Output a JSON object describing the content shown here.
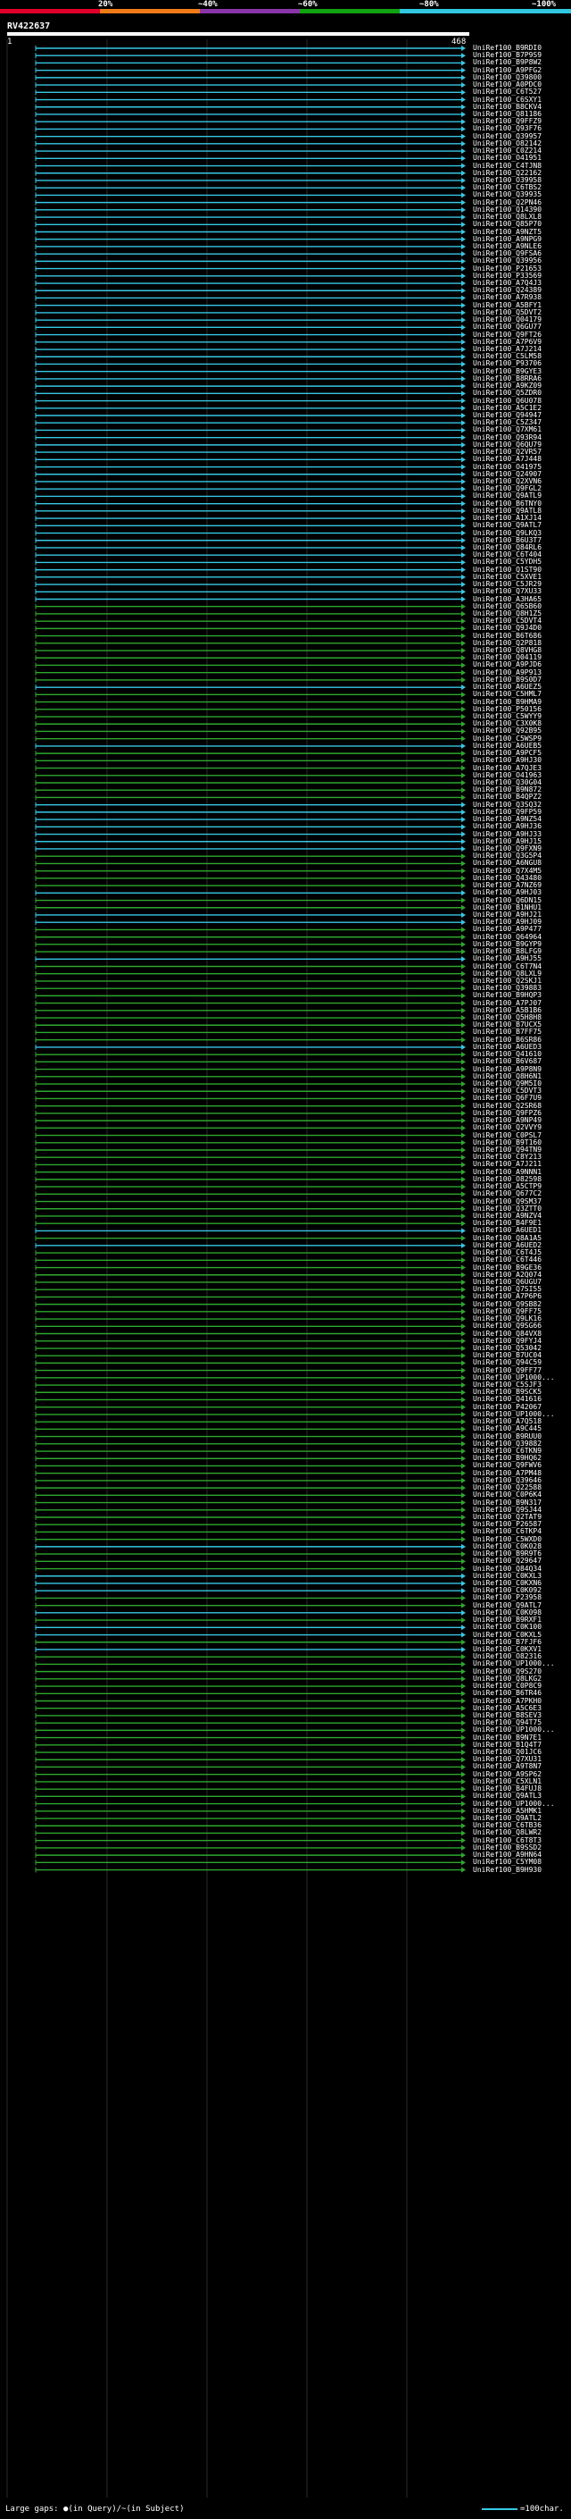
{
  "scale": {
    "labels": [
      "20%",
      "~40%",
      "~60%",
      "~80%",
      "~100%"
    ],
    "colors": [
      "#e0002a",
      "#f07b18",
      "#8a35a8",
      "#12a312",
      "#30c8e0"
    ]
  },
  "query": {
    "name": "RV422637",
    "start": "1",
    "end": "468"
  },
  "colors": {
    "cyan": "#37c8e5",
    "green": "#2ea82e",
    "query": "#ffffff",
    "grid": "#2a2a2a"
  },
  "hits": [
    {
      "label": "UniRef100_B9RDI0",
      "c": "cyan"
    },
    {
      "label": "UniRef100_B7P9S9",
      "c": "cyan"
    },
    {
      "label": "UniRef100_B9P8W2",
      "c": "cyan"
    },
    {
      "label": "UniRef100_A9PFG2",
      "c": "cyan"
    },
    {
      "label": "UniRef100_Q39800",
      "c": "cyan"
    },
    {
      "label": "UniRef100_A0PDC0",
      "c": "cyan"
    },
    {
      "label": "UniRef100_C6T527",
      "c": "cyan"
    },
    {
      "label": "UniRef100_C6SXY1",
      "c": "cyan"
    },
    {
      "label": "UniRef100_B8CKV4",
      "c": "cyan"
    },
    {
      "label": "UniRef100_Q81186",
      "c": "cyan"
    },
    {
      "label": "UniRef100_Q9FFZ9",
      "c": "cyan"
    },
    {
      "label": "UniRef100_Q93F76",
      "c": "cyan"
    },
    {
      "label": "UniRef100_Q39957",
      "c": "cyan"
    },
    {
      "label": "UniRef100_O82142",
      "c": "cyan"
    },
    {
      "label": "UniRef100_C0Z214",
      "c": "cyan"
    },
    {
      "label": "UniRef100_O41951",
      "c": "cyan"
    },
    {
      "label": "UniRef100_C4TJN8",
      "c": "cyan"
    },
    {
      "label": "UniRef100_Q22162",
      "c": "cyan"
    },
    {
      "label": "UniRef100_O39958",
      "c": "cyan"
    },
    {
      "label": "UniRef100_C6TBS2",
      "c": "cyan"
    },
    {
      "label": "UniRef100_Q39935",
      "c": "cyan"
    },
    {
      "label": "UniRef100_Q2PN46",
      "c": "cyan"
    },
    {
      "label": "UniRef100_Q14390",
      "c": "cyan"
    },
    {
      "label": "UniRef100_Q8LXL8",
      "c": "cyan"
    },
    {
      "label": "UniRef100_Q85P70",
      "c": "cyan"
    },
    {
      "label": "UniRef100_A9NZT5",
      "c": "cyan"
    },
    {
      "label": "UniRef100_A9NPG9",
      "c": "cyan"
    },
    {
      "label": "UniRef100_A9NLE6",
      "c": "cyan"
    },
    {
      "label": "UniRef100_Q9FSA6",
      "c": "cyan"
    },
    {
      "label": "UniRef100_Q39956",
      "c": "cyan"
    },
    {
      "label": "UniRef100_P21653",
      "c": "cyan"
    },
    {
      "label": "UniRef100_P33569",
      "c": "cyan"
    },
    {
      "label": "UniRef100_A7Q4J3",
      "c": "cyan"
    },
    {
      "label": "UniRef100_Q24389",
      "c": "cyan"
    },
    {
      "label": "UniRef100_A7R938",
      "c": "cyan"
    },
    {
      "label": "UniRef100_A5BFY1",
      "c": "cyan"
    },
    {
      "label": "UniRef100_Q5DVT2",
      "c": "cyan"
    },
    {
      "label": "UniRef100_Q04179",
      "c": "cyan"
    },
    {
      "label": "UniRef100_Q6GU77",
      "c": "cyan"
    },
    {
      "label": "UniRef100_Q9FT26",
      "c": "cyan"
    },
    {
      "label": "UniRef100_A7P6V9",
      "c": "cyan"
    },
    {
      "label": "UniRef100_A7J214",
      "c": "cyan"
    },
    {
      "label": "UniRef100_C5LM58",
      "c": "cyan"
    },
    {
      "label": "UniRef100_P93706",
      "c": "cyan"
    },
    {
      "label": "UniRef100_B9GYE3",
      "c": "cyan"
    },
    {
      "label": "UniRef100_B8RRA6",
      "c": "cyan"
    },
    {
      "label": "UniRef100_A9KZ09",
      "c": "cyan"
    },
    {
      "label": "UniRef100_Q5ZDR0",
      "c": "cyan"
    },
    {
      "label": "UniRef100_Q6U078",
      "c": "cyan"
    },
    {
      "label": "UniRef100_A5C1E2",
      "c": "cyan"
    },
    {
      "label": "UniRef100_Q94947",
      "c": "cyan"
    },
    {
      "label": "UniRef100_C5Z347",
      "c": "cyan"
    },
    {
      "label": "UniRef100_Q7XM61",
      "c": "cyan"
    },
    {
      "label": "UniRef100_Q93R94",
      "c": "cyan"
    },
    {
      "label": "UniRef100_Q6QU79",
      "c": "cyan"
    },
    {
      "label": "UniRef100_Q2VR57",
      "c": "cyan"
    },
    {
      "label": "UniRef100_A7J448",
      "c": "cyan"
    },
    {
      "label": "UniRef100_O41975",
      "c": "cyan"
    },
    {
      "label": "UniRef100_Q24907",
      "c": "cyan"
    },
    {
      "label": "UniRef100_Q2XVN6",
      "c": "cyan"
    },
    {
      "label": "UniRef100_Q9FGL2",
      "c": "cyan"
    },
    {
      "label": "UniRef100_Q9ATL9",
      "c": "cyan"
    },
    {
      "label": "UniRef100_B6TNY0",
      "c": "cyan"
    },
    {
      "label": "UniRef100_Q9ATL8",
      "c": "cyan"
    },
    {
      "label": "UniRef100_A1XJ14",
      "c": "cyan"
    },
    {
      "label": "UniRef100_Q9ATL7",
      "c": "cyan"
    },
    {
      "label": "UniRef100_Q9LKQ3",
      "c": "cyan"
    },
    {
      "label": "UniRef100_B6U3T7",
      "c": "cyan"
    },
    {
      "label": "UniRef100_Q84RL6",
      "c": "cyan"
    },
    {
      "label": "UniRef100_C6T404",
      "c": "cyan"
    },
    {
      "label": "UniRef100_C5YDH5",
      "c": "cyan"
    },
    {
      "label": "UniRef100_Q1ST90",
      "c": "cyan"
    },
    {
      "label": "UniRef100_C5XVE1",
      "c": "cyan"
    },
    {
      "label": "UniRef100_C5JR29",
      "c": "cyan"
    },
    {
      "label": "UniRef100_Q7XU33",
      "c": "cyan"
    },
    {
      "label": "UniRef100_A3HA65",
      "c": "cyan"
    },
    {
      "label": "UniRef100_Q65B60",
      "c": "green"
    },
    {
      "label": "UniRef100_Q8H1Z5",
      "c": "green"
    },
    {
      "label": "UniRef100_C5DVT4",
      "c": "green"
    },
    {
      "label": "UniRef100_Q9J4D0",
      "c": "green"
    },
    {
      "label": "UniRef100_B6T686",
      "c": "green"
    },
    {
      "label": "UniRef100_Q2P818",
      "c": "green"
    },
    {
      "label": "UniRef100_Q8VHG8",
      "c": "green"
    },
    {
      "label": "UniRef100_Q04119",
      "c": "green"
    },
    {
      "label": "UniRef100_A9PJD6",
      "c": "green"
    },
    {
      "label": "UniRef100_A9P913",
      "c": "green"
    },
    {
      "label": "UniRef100_B9S0D7",
      "c": "green"
    },
    {
      "label": "UniRef100_A6UEZ5",
      "c": "cyan"
    },
    {
      "label": "UniRef100_C5HML7",
      "c": "green"
    },
    {
      "label": "UniRef100_B9HMA9",
      "c": "green"
    },
    {
      "label": "UniRef100_P50156",
      "c": "green"
    },
    {
      "label": "UniRef100_C5WYY9",
      "c": "green"
    },
    {
      "label": "UniRef100_C3X0K8",
      "c": "green"
    },
    {
      "label": "UniRef100_Q92B95",
      "c": "green"
    },
    {
      "label": "UniRef100_C5WSP9",
      "c": "green"
    },
    {
      "label": "UniRef100_A6UEB5",
      "c": "cyan"
    },
    {
      "label": "UniRef100_A9PCF5",
      "c": "green"
    },
    {
      "label": "UniRef100_A9HJ30",
      "c": "green"
    },
    {
      "label": "UniRef100_A7QJE3",
      "c": "green"
    },
    {
      "label": "UniRef100_O41963",
      "c": "green"
    },
    {
      "label": "UniRef100_Q30G04",
      "c": "green"
    },
    {
      "label": "UniRef100_B9N872",
      "c": "green"
    },
    {
      "label": "UniRef100_B4QPZ2",
      "c": "green"
    },
    {
      "label": "UniRef100_Q3SQ32",
      "c": "cyan"
    },
    {
      "label": "UniRef100_Q9FP59",
      "c": "cyan"
    },
    {
      "label": "UniRef100_A9NZ54",
      "c": "cyan"
    },
    {
      "label": "UniRef100_A9HJ36",
      "c": "cyan"
    },
    {
      "label": "UniRef100_A9HJ33",
      "c": "cyan"
    },
    {
      "label": "UniRef100_A9HJ15",
      "c": "cyan"
    },
    {
      "label": "UniRef100_Q9FXN9",
      "c": "cyan"
    },
    {
      "label": "UniRef100_Q3G5P4",
      "c": "green"
    },
    {
      "label": "UniRef100_A6NGU8",
      "c": "green"
    },
    {
      "label": "UniRef100_Q7X4M5",
      "c": "green"
    },
    {
      "label": "UniRef100_Q43480",
      "c": "green"
    },
    {
      "label": "UniRef100_A7NZ69",
      "c": "green"
    },
    {
      "label": "UniRef100_A9HJ03",
      "c": "cyan"
    },
    {
      "label": "UniRef100_Q6DN15",
      "c": "green"
    },
    {
      "label": "UniRef100_B1NHU1",
      "c": "green"
    },
    {
      "label": "UniRef100_A9HJ21",
      "c": "cyan"
    },
    {
      "label": "UniRef100_A9HJ09",
      "c": "cyan"
    },
    {
      "label": "UniRef100_A9P477",
      "c": "green"
    },
    {
      "label": "UniRef100_Q64964",
      "c": "green"
    },
    {
      "label": "UniRef100_B9GYP9",
      "c": "green"
    },
    {
      "label": "UniRef100_B8LFG9",
      "c": "green"
    },
    {
      "label": "UniRef100_A9HJ55",
      "c": "cyan"
    },
    {
      "label": "UniRef100_C6T7N4",
      "c": "green"
    },
    {
      "label": "UniRef100_Q8LXL9",
      "c": "green"
    },
    {
      "label": "UniRef100_Q2SKJ1",
      "c": "green"
    },
    {
      "label": "UniRef100_Q39883",
      "c": "green"
    },
    {
      "label": "UniRef100_B9HQP3",
      "c": "green"
    },
    {
      "label": "UniRef100_A7PJ07",
      "c": "green"
    },
    {
      "label": "UniRef100_A5B1B6",
      "c": "green"
    },
    {
      "label": "UniRef100_Q5H8H8",
      "c": "green"
    },
    {
      "label": "UniRef100_B7UCX5",
      "c": "green"
    },
    {
      "label": "UniRef100_B7FF75",
      "c": "green"
    },
    {
      "label": "UniRef100_B6SR86",
      "c": "green"
    },
    {
      "label": "UniRef100_A6UED3",
      "c": "cyan"
    },
    {
      "label": "UniRef100_Q41610",
      "c": "green"
    },
    {
      "label": "UniRef100_B6V687",
      "c": "green"
    },
    {
      "label": "UniRef100_A9P8N9",
      "c": "green"
    },
    {
      "label": "UniRef100_Q8H6N1",
      "c": "green"
    },
    {
      "label": "UniRef100_Q9M5I0",
      "c": "green"
    },
    {
      "label": "UniRef100_C5DVT3",
      "c": "green"
    },
    {
      "label": "UniRef100_Q6F7U9",
      "c": "green"
    },
    {
      "label": "UniRef100_Q2SR68",
      "c": "green"
    },
    {
      "label": "UniRef100_Q9FPZ6",
      "c": "green"
    },
    {
      "label": "UniRef100_A9NP49",
      "c": "green"
    },
    {
      "label": "UniRef100_Q2VVY9",
      "c": "green"
    },
    {
      "label": "UniRef100_C0PSL7",
      "c": "green"
    },
    {
      "label": "UniRef100_B9T160",
      "c": "green"
    },
    {
      "label": "UniRef100_Q94TN9",
      "c": "green"
    },
    {
      "label": "UniRef100_C8Y213",
      "c": "green"
    },
    {
      "label": "UniRef100_A7J211",
      "c": "green"
    },
    {
      "label": "UniRef100_A9NNN1",
      "c": "green"
    },
    {
      "label": "UniRef100_O82598",
      "c": "green"
    },
    {
      "label": "UniRef100_A5CTP9",
      "c": "green"
    },
    {
      "label": "UniRef100_Q677C2",
      "c": "green"
    },
    {
      "label": "UniRef100_Q9SM37",
      "c": "green"
    },
    {
      "label": "UniRef100_Q3ZTT0",
      "c": "green"
    },
    {
      "label": "UniRef100_A9NZV4",
      "c": "green"
    },
    {
      "label": "UniRef100_B4F9E1",
      "c": "green"
    },
    {
      "label": "UniRef100_A6UED1",
      "c": "cyan"
    },
    {
      "label": "UniRef100_Q8A1A5",
      "c": "green"
    },
    {
      "label": "UniRef100_A6UED2",
      "c": "cyan"
    },
    {
      "label": "UniRef100_C6T4J5",
      "c": "green"
    },
    {
      "label": "UniRef100_C6T446",
      "c": "green"
    },
    {
      "label": "UniRef100_B9GE36",
      "c": "green"
    },
    {
      "label": "UniRef100_A2Q074",
      "c": "green"
    },
    {
      "label": "UniRef100_Q6UGU7",
      "c": "green"
    },
    {
      "label": "UniRef100_Q7SI55",
      "c": "green"
    },
    {
      "label": "UniRef100_A7P6P6",
      "c": "green"
    },
    {
      "label": "UniRef100_Q9SB82",
      "c": "green"
    },
    {
      "label": "UniRef100_Q9FF75",
      "c": "green"
    },
    {
      "label": "UniRef100_Q9LK16",
      "c": "green"
    },
    {
      "label": "UniRef100_Q9SG66",
      "c": "green"
    },
    {
      "label": "UniRef100_Q84VX8",
      "c": "green"
    },
    {
      "label": "UniRef100_Q9FYJ4",
      "c": "green"
    },
    {
      "label": "UniRef100_Q53042",
      "c": "green"
    },
    {
      "label": "UniRef100_B7UC04",
      "c": "green"
    },
    {
      "label": "UniRef100_Q94C59",
      "c": "green"
    },
    {
      "label": "UniRef100_Q9FF77",
      "c": "green"
    },
    {
      "label": "UniRef100_UP1000...",
      "c": "green"
    },
    {
      "label": "UniRef100_C5SJF3",
      "c": "green"
    },
    {
      "label": "UniRef100_B9SCK5",
      "c": "green"
    },
    {
      "label": "UniRef100_Q41616",
      "c": "green"
    },
    {
      "label": "UniRef100_P42067",
      "c": "green"
    },
    {
      "label": "UniRef100_UP1000...",
      "c": "green"
    },
    {
      "label": "UniRef100_A7Q518",
      "c": "green"
    },
    {
      "label": "UniRef100_A9C445",
      "c": "green"
    },
    {
      "label": "UniRef100_B9RUU0",
      "c": "green"
    },
    {
      "label": "UniRef100_Q39882",
      "c": "green"
    },
    {
      "label": "UniRef100_C6TKN9",
      "c": "green"
    },
    {
      "label": "UniRef100_B9HQ62",
      "c": "green"
    },
    {
      "label": "UniRef100_Q9FWV6",
      "c": "green"
    },
    {
      "label": "UniRef100_A7PM48",
      "c": "green"
    },
    {
      "label": "UniRef100_Q39646",
      "c": "green"
    },
    {
      "label": "UniRef100_Q22588",
      "c": "green"
    },
    {
      "label": "UniRef100_C0P6K4",
      "c": "green"
    },
    {
      "label": "UniRef100_B9N317",
      "c": "green"
    },
    {
      "label": "UniRef100_Q9SJ44",
      "c": "green"
    },
    {
      "label": "UniRef100_Q2TAT9",
      "c": "green"
    },
    {
      "label": "UniRef100_P26587",
      "c": "green"
    },
    {
      "label": "UniRef100_C6TKP4",
      "c": "green"
    },
    {
      "label": "UniRef100_C5WXD0",
      "c": "green"
    },
    {
      "label": "UniRef100_C0K028",
      "c": "cyan"
    },
    {
      "label": "UniRef100_B9R9T6",
      "c": "green"
    },
    {
      "label": "UniRef100_Q29647",
      "c": "green"
    },
    {
      "label": "UniRef100_Q84Q34",
      "c": "green"
    },
    {
      "label": "UniRef100_C0KXL3",
      "c": "cyan"
    },
    {
      "label": "UniRef100_C0KXN6",
      "c": "cyan"
    },
    {
      "label": "UniRef100_C0K092",
      "c": "cyan"
    },
    {
      "label": "UniRef100_P23958",
      "c": "green"
    },
    {
      "label": "UniRef100_Q9ATL7",
      "c": "green"
    },
    {
      "label": "UniRef100_C0K098",
      "c": "cyan"
    },
    {
      "label": "UniRef100_B9RXF1",
      "c": "green"
    },
    {
      "label": "UniRef100_C0K100",
      "c": "cyan"
    },
    {
      "label": "UniRef100_C0KXL5",
      "c": "cyan"
    },
    {
      "label": "UniRef100_B7FJF6",
      "c": "green"
    },
    {
      "label": "UniRef100_C0KXV1",
      "c": "cyan"
    },
    {
      "label": "UniRef100_O82316",
      "c": "green"
    },
    {
      "label": "UniRef100_UP1000...",
      "c": "green"
    },
    {
      "label": "UniRef100_Q9S270",
      "c": "green"
    },
    {
      "label": "UniRef100_Q8LKG2",
      "c": "green"
    },
    {
      "label": "UniRef100_C0P8C9",
      "c": "green"
    },
    {
      "label": "UniRef100_B6TR46",
      "c": "green"
    },
    {
      "label": "UniRef100_A7PKH0",
      "c": "green"
    },
    {
      "label": "UniRef100_A5C6E3",
      "c": "green"
    },
    {
      "label": "UniRef100_B8SEV3",
      "c": "green"
    },
    {
      "label": "UniRef100_Q94T75",
      "c": "green"
    },
    {
      "label": "UniRef100_UP1000...",
      "c": "green"
    },
    {
      "label": "UniRef100_B9N7E1",
      "c": "green"
    },
    {
      "label": "UniRef100_B1Q4T7",
      "c": "green"
    },
    {
      "label": "UniRef100_Q01JC6",
      "c": "green"
    },
    {
      "label": "UniRef100_Q7XU31",
      "c": "green"
    },
    {
      "label": "UniRef100_A9T8N7",
      "c": "green"
    },
    {
      "label": "UniRef100_A9SP62",
      "c": "green"
    },
    {
      "label": "UniRef100_C5XLN1",
      "c": "green"
    },
    {
      "label": "UniRef100_B4FUJ8",
      "c": "green"
    },
    {
      "label": "UniRef100_Q9ATL3",
      "c": "green"
    },
    {
      "label": "UniRef100_UP1000...",
      "c": "green"
    },
    {
      "label": "UniRef100_A5HMK1",
      "c": "green"
    },
    {
      "label": "UniRef100_Q9ATL2",
      "c": "green"
    },
    {
      "label": "UniRef100_C6TB36",
      "c": "green"
    },
    {
      "label": "UniRef100_Q8LWR2",
      "c": "green"
    },
    {
      "label": "UniRef100_C6T8T3",
      "c": "green"
    },
    {
      "label": "UniRef100_B9SSD2",
      "c": "green"
    },
    {
      "label": "UniRef100_A9HN64",
      "c": "green"
    },
    {
      "label": "UniRef100_C5YM08",
      "c": "green"
    },
    {
      "label": "UniRef100_B9H930",
      "c": "green"
    }
  ],
  "legend": {
    "text": "Large gaps: ●(in Query)/~(in Subject)",
    "scale_text": "=100char."
  }
}
